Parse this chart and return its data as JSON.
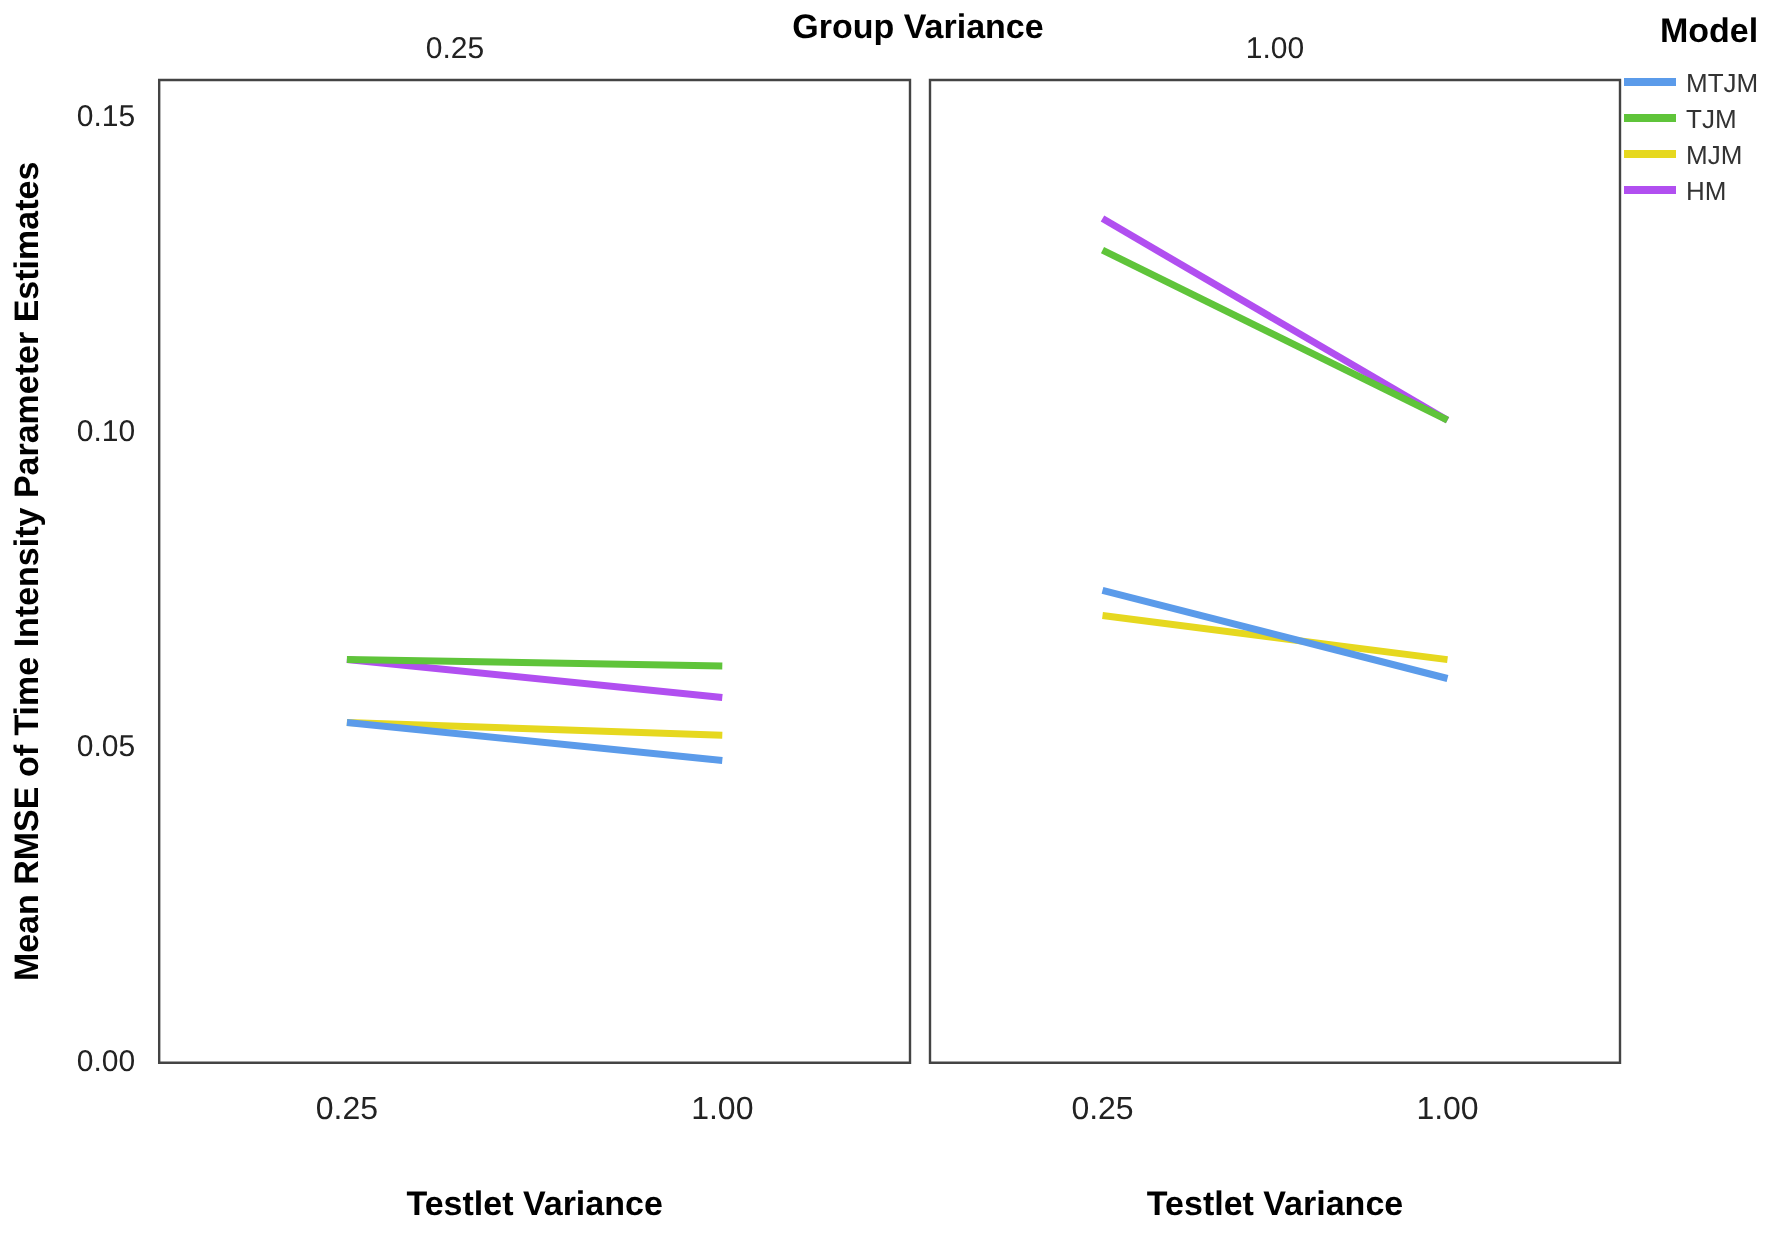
{
  "chart_data": [
    {
      "type": "line",
      "title": "0.25",
      "annotations": [
        "Group Variance"
      ],
      "xlabel": "Testlet Variance",
      "ylabel": "Mean RMSE of Time Intensity Parameter Estimates",
      "categories": [
        "0.25",
        "1.00"
      ],
      "ylim": [
        0,
        0.156
      ],
      "yticks": [
        {
          "value": 0,
          "label": "0.00"
        },
        {
          "value": 0.05,
          "label": "0.05"
        },
        {
          "value": 0.1,
          "label": "0.10"
        },
        {
          "value": 0.15,
          "label": "0.15"
        }
      ],
      "grid": false,
      "legend": false,
      "marker": "none",
      "series": [
        {
          "color": "#5b9bea",
          "values": [
            0.054,
            0.048
          ]
        },
        {
          "color": "#5fc43a",
          "values": [
            0.064,
            0.063
          ]
        },
        {
          "color": "#e6d81f",
          "values": [
            0.054,
            0.052
          ]
        },
        {
          "color": "#b14ff0",
          "values": [
            0.064,
            0.058
          ]
        }
      ]
    },
    {
      "type": "line",
      "title": "1.00",
      "xlabel": "Testlet Variance",
      "categories": [
        "0.25",
        "1.00"
      ],
      "ylim": [
        0,
        0.156
      ],
      "tick_labels": "x",
      "grid": false,
      "legend": "right",
      "legend_title": "Model",
      "marker": "none",
      "series": [
        {
          "name": "MTJM",
          "color": "#5b9bea",
          "values": [
            0.075,
            0.061
          ]
        },
        {
          "name": "TJM",
          "color": "#5fc43a",
          "values": [
            0.129,
            0.102
          ]
        },
        {
          "name": "MJM",
          "color": "#e6d81f",
          "values": [
            0.071,
            0.064
          ]
        },
        {
          "name": "HM",
          "color": "#b14ff0",
          "values": [
            0.134,
            0.102
          ]
        }
      ]
    }
  ]
}
